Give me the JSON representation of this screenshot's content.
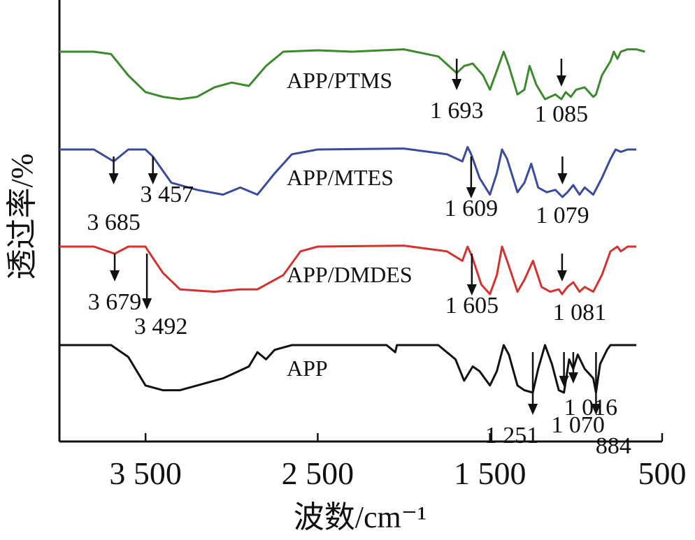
{
  "chart_data": {
    "type": "line",
    "xlabel": "波数/cm⁻¹",
    "ylabel": "透过率/%",
    "xlim": [
      4000,
      500
    ],
    "x_ticks": [
      {
        "value": 3500,
        "label": "3 500"
      },
      {
        "value": 2500,
        "label": "2 500"
      },
      {
        "value": 1500,
        "label": "1 500"
      },
      {
        "value": 500,
        "label": "500"
      }
    ],
    "grid": false,
    "series": [
      {
        "name": "APP/PTMS",
        "color": "#3d8a2e",
        "offset": 3,
        "points": [
          [
            4000,
            0
          ],
          [
            3800,
            0
          ],
          [
            3700,
            -0.05
          ],
          [
            3600,
            -0.5
          ],
          [
            3500,
            -0.85
          ],
          [
            3400,
            -0.95
          ],
          [
            3300,
            -1
          ],
          [
            3200,
            -0.95
          ],
          [
            3100,
            -0.75
          ],
          [
            3000,
            -0.65
          ],
          [
            2900,
            -0.72
          ],
          [
            2800,
            -0.3
          ],
          [
            2700,
            0
          ],
          [
            2500,
            0.03
          ],
          [
            2300,
            0
          ],
          [
            2000,
            0.05
          ],
          [
            1800,
            -0.1
          ],
          [
            1693,
            -0.45
          ],
          [
            1650,
            -0.3
          ],
          [
            1600,
            -0.25
          ],
          [
            1540,
            -0.5
          ],
          [
            1500,
            -0.8
          ],
          [
            1460,
            -0.4
          ],
          [
            1420,
            0
          ],
          [
            1390,
            -0.3
          ],
          [
            1340,
            -0.9
          ],
          [
            1300,
            -0.8
          ],
          [
            1270,
            -0.3
          ],
          [
            1230,
            -0.7
          ],
          [
            1180,
            -1
          ],
          [
            1120,
            -0.9
          ],
          [
            1085,
            -1
          ],
          [
            1060,
            -0.85
          ],
          [
            1030,
            -0.95
          ],
          [
            1000,
            -0.8
          ],
          [
            950,
            -0.75
          ],
          [
            900,
            -0.95
          ],
          [
            884,
            -0.9
          ],
          [
            850,
            -0.5
          ],
          [
            800,
            -0.2
          ],
          [
            780,
            0
          ],
          [
            760,
            -0.15
          ],
          [
            740,
            0
          ],
          [
            700,
            0.05
          ],
          [
            650,
            0.05
          ],
          [
            600,
            0
          ]
        ]
      },
      {
        "name": "APP/MTES",
        "color": "#3a4a9c",
        "offset": 2,
        "points": [
          [
            4000,
            0
          ],
          [
            3800,
            0
          ],
          [
            3685,
            -0.25
          ],
          [
            3600,
            0
          ],
          [
            3500,
            0
          ],
          [
            3457,
            -0.15
          ],
          [
            3350,
            -0.7
          ],
          [
            3200,
            -0.85
          ],
          [
            3050,
            -0.95
          ],
          [
            2950,
            -0.8
          ],
          [
            2850,
            -0.95
          ],
          [
            2750,
            -0.5
          ],
          [
            2650,
            -0.1
          ],
          [
            2500,
            0
          ],
          [
            2000,
            0.02
          ],
          [
            1750,
            -0.1
          ],
          [
            1660,
            -0.25
          ],
          [
            1630,
            0.05
          ],
          [
            1609,
            -0.1
          ],
          [
            1560,
            -0.6
          ],
          [
            1500,
            -0.95
          ],
          [
            1460,
            -0.5
          ],
          [
            1430,
            0
          ],
          [
            1400,
            -0.2
          ],
          [
            1340,
            -0.9
          ],
          [
            1300,
            -0.7
          ],
          [
            1260,
            -0.3
          ],
          [
            1220,
            -0.8
          ],
          [
            1170,
            -0.9
          ],
          [
            1120,
            -0.85
          ],
          [
            1079,
            -1
          ],
          [
            1050,
            -0.9
          ],
          [
            1016,
            -0.75
          ],
          [
            980,
            -0.95
          ],
          [
            950,
            -0.8
          ],
          [
            900,
            -0.95
          ],
          [
            850,
            -0.6
          ],
          [
            800,
            -0.2
          ],
          [
            770,
            0
          ],
          [
            740,
            -0.05
          ],
          [
            700,
            0
          ],
          [
            650,
            0
          ]
        ]
      },
      {
        "name": "APP/DMDES",
        "color": "#d4322e",
        "offset": 1,
        "points": [
          [
            4000,
            0
          ],
          [
            3800,
            0
          ],
          [
            3679,
            -0.15
          ],
          [
            3600,
            0
          ],
          [
            3500,
            0
          ],
          [
            3492,
            -0.05
          ],
          [
            3400,
            -0.55
          ],
          [
            3300,
            -0.9
          ],
          [
            3100,
            -0.95
          ],
          [
            2950,
            -0.9
          ],
          [
            2850,
            -0.9
          ],
          [
            2700,
            -0.6
          ],
          [
            2600,
            -0.1
          ],
          [
            2500,
            0
          ],
          [
            2000,
            0.02
          ],
          [
            1750,
            -0.1
          ],
          [
            1660,
            -0.3
          ],
          [
            1630,
            0
          ],
          [
            1605,
            -0.2
          ],
          [
            1550,
            -0.8
          ],
          [
            1500,
            -1
          ],
          [
            1460,
            -0.6
          ],
          [
            1430,
            0
          ],
          [
            1400,
            -0.3
          ],
          [
            1340,
            -0.95
          ],
          [
            1300,
            -0.7
          ],
          [
            1250,
            -0.3
          ],
          [
            1200,
            -0.85
          ],
          [
            1150,
            -0.95
          ],
          [
            1100,
            -0.9
          ],
          [
            1081,
            -1
          ],
          [
            1050,
            -0.85
          ],
          [
            1016,
            -0.75
          ],
          [
            980,
            -0.95
          ],
          [
            950,
            -0.85
          ],
          [
            900,
            -0.95
          ],
          [
            850,
            -0.6
          ],
          [
            800,
            -0.1
          ],
          [
            760,
            0
          ],
          [
            740,
            -0.1
          ],
          [
            700,
            0
          ],
          [
            650,
            0
          ]
        ]
      },
      {
        "name": "APP",
        "color": "#111111",
        "offset": 0,
        "points": [
          [
            4000,
            0
          ],
          [
            3700,
            0
          ],
          [
            3600,
            -0.25
          ],
          [
            3500,
            -0.85
          ],
          [
            3400,
            -0.95
          ],
          [
            3300,
            -0.95
          ],
          [
            3200,
            -0.85
          ],
          [
            3050,
            -0.7
          ],
          [
            2900,
            -0.45
          ],
          [
            2850,
            -0.15
          ],
          [
            2800,
            -0.3
          ],
          [
            2750,
            -0.1
          ],
          [
            2650,
            0
          ],
          [
            2500,
            0
          ],
          [
            2100,
            0
          ],
          [
            2050,
            -0.15
          ],
          [
            2040,
            0
          ],
          [
            2000,
            0
          ],
          [
            1800,
            0
          ],
          [
            1700,
            -0.3
          ],
          [
            1650,
            -0.75
          ],
          [
            1600,
            -0.45
          ],
          [
            1560,
            -0.55
          ],
          [
            1500,
            -0.85
          ],
          [
            1460,
            -0.55
          ],
          [
            1420,
            0
          ],
          [
            1390,
            -0.2
          ],
          [
            1340,
            -0.85
          ],
          [
            1300,
            -0.95
          ],
          [
            1251,
            -1
          ],
          [
            1220,
            -0.5
          ],
          [
            1180,
            0
          ],
          [
            1140,
            -0.4
          ],
          [
            1100,
            -0.95
          ],
          [
            1070,
            -1
          ],
          [
            1040,
            -0.3
          ],
          [
            1016,
            -0.5
          ],
          [
            990,
            -0.2
          ],
          [
            950,
            -0.5
          ],
          [
            900,
            -0.7
          ],
          [
            884,
            -1
          ],
          [
            860,
            -0.4
          ],
          [
            820,
            -0.1
          ],
          [
            800,
            0
          ],
          [
            760,
            0
          ],
          [
            700,
            0
          ],
          [
            650,
            0
          ]
        ]
      }
    ],
    "peak_annotations": [
      {
        "series": "APP/PTMS",
        "x": 1693,
        "label": "1 693"
      },
      {
        "series": "APP/PTMS",
        "x": 1085,
        "label": "1 085"
      },
      {
        "series": "APP/MTES",
        "x": 3685,
        "label": "3 685"
      },
      {
        "series": "APP/MTES",
        "x": 3457,
        "label": "3 457"
      },
      {
        "series": "APP/MTES",
        "x": 1609,
        "label": "1 609"
      },
      {
        "series": "APP/MTES",
        "x": 1079,
        "label": "1 079"
      },
      {
        "series": "APP/DMDES",
        "x": 3679,
        "label": "3 679"
      },
      {
        "series": "APP/DMDES",
        "x": 3492,
        "label": "3 492"
      },
      {
        "series": "APP/DMDES",
        "x": 1605,
        "label": "1 605"
      },
      {
        "series": "APP/DMDES",
        "x": 1081,
        "label": "1 081"
      },
      {
        "series": "APP",
        "x": 1251,
        "label": "1 251"
      },
      {
        "series": "APP",
        "x": 1070,
        "label": "1 070"
      },
      {
        "series": "APP",
        "x": 1016,
        "label": "1 016"
      },
      {
        "series": "APP",
        "x": 884,
        "label": "884"
      }
    ]
  }
}
